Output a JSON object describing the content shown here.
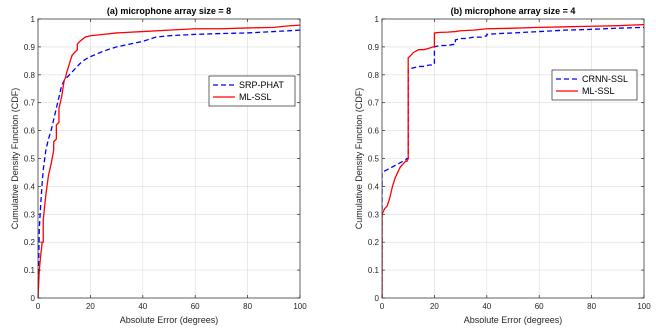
{
  "chart_data": [
    {
      "type": "line",
      "title": "(a) microphone array size = 8",
      "xlabel": "Absolute Error (degrees)",
      "ylabel": "Cumulative Density Function (CDF)",
      "xlim": [
        0,
        100
      ],
      "ylim": [
        0,
        1
      ],
      "xticks": [
        0,
        20,
        40,
        60,
        80,
        100
      ],
      "yticks": [
        0,
        0.1,
        0.2,
        0.3,
        0.4,
        0.5,
        0.6,
        0.7,
        0.8,
        0.9,
        1
      ],
      "xtick_labels": [
        "0",
        "20",
        "40",
        "60",
        "80",
        "100"
      ],
      "ytick_labels": [
        "0",
        "0.1",
        "0.2",
        "0.3",
        "0.4",
        "0.5",
        "0.6",
        "0.7",
        "0.8",
        "0.9",
        "1"
      ],
      "grid": true,
      "legend_position": "right",
      "series": [
        {
          "name": "SRP-PHAT",
          "color": "#0000ff",
          "style": "dashed",
          "x": [
            0,
            0.5,
            1,
            1.5,
            2,
            3,
            4,
            5,
            6,
            7,
            8,
            9,
            10,
            11,
            12,
            13,
            14,
            15,
            16,
            18,
            20,
            25,
            30,
            35,
            40,
            45,
            50,
            60,
            70,
            80,
            90,
            100
          ],
          "y": [
            0,
            0.25,
            0.33,
            0.4,
            0.46,
            0.53,
            0.57,
            0.6,
            0.64,
            0.68,
            0.72,
            0.76,
            0.78,
            0.79,
            0.8,
            0.81,
            0.82,
            0.83,
            0.84,
            0.855,
            0.865,
            0.885,
            0.9,
            0.91,
            0.92,
            0.935,
            0.94,
            0.945,
            0.948,
            0.95,
            0.955,
            0.96
          ]
        },
        {
          "name": "ML-SSL",
          "color": "#ff0000",
          "style": "solid",
          "x": [
            0,
            0.5,
            1,
            1.5,
            1.5,
            2,
            2,
            3,
            4,
            5,
            6,
            6,
            7,
            7,
            8,
            8,
            9,
            10,
            10.5,
            11,
            12,
            13,
            14,
            15,
            15,
            16,
            18,
            20,
            25,
            30,
            40,
            50,
            60,
            70,
            80,
            90,
            95,
            100
          ],
          "y": [
            0,
            0.1,
            0.15,
            0.19,
            0.2,
            0.2,
            0.28,
            0.37,
            0.44,
            0.48,
            0.53,
            0.56,
            0.57,
            0.62,
            0.63,
            0.68,
            0.72,
            0.78,
            0.79,
            0.81,
            0.84,
            0.87,
            0.88,
            0.89,
            0.91,
            0.92,
            0.935,
            0.94,
            0.945,
            0.95,
            0.955,
            0.96,
            0.965,
            0.965,
            0.968,
            0.97,
            0.975,
            0.978
          ]
        }
      ]
    },
    {
      "type": "line",
      "title": "(b) microphone array size = 4",
      "xlabel": "Absolute Error (degrees)",
      "ylabel": "Cumulative Density Function (CDF)",
      "xlim": [
        0,
        100
      ],
      "ylim": [
        0,
        1
      ],
      "xticks": [
        0,
        20,
        40,
        60,
        80,
        100
      ],
      "yticks": [
        0,
        0.1,
        0.2,
        0.3,
        0.4,
        0.5,
        0.6,
        0.7,
        0.8,
        0.9,
        1
      ],
      "xtick_labels": [
        "0",
        "20",
        "40",
        "60",
        "80",
        "100"
      ],
      "ytick_labels": [
        "0",
        "0.1",
        "0.2",
        "0.3",
        "0.4",
        "0.5",
        "0.6",
        "0.7",
        "0.8",
        "0.9",
        "1"
      ],
      "grid": true,
      "legend_position": "right",
      "series": [
        {
          "name": "CRNN-SSL",
          "color": "#0000ff",
          "style": "dashed",
          "x": [
            0,
            0,
            1,
            2,
            3,
            4,
            5,
            6,
            7,
            8,
            9,
            9.5,
            10,
            10,
            12,
            14,
            16,
            18,
            19.5,
            20,
            20,
            22,
            25,
            28,
            28,
            30,
            32,
            35,
            38,
            40,
            40,
            45,
            50,
            60,
            70,
            80,
            90,
            100
          ],
          "y": [
            0,
            0.45,
            0.455,
            0.46,
            0.465,
            0.47,
            0.475,
            0.48,
            0.485,
            0.49,
            0.495,
            0.5,
            0.5,
            0.82,
            0.825,
            0.83,
            0.83,
            0.835,
            0.835,
            0.84,
            0.9,
            0.905,
            0.905,
            0.91,
            0.925,
            0.93,
            0.93,
            0.935,
            0.935,
            0.94,
            0.945,
            0.948,
            0.95,
            0.955,
            0.96,
            0.963,
            0.967,
            0.97
          ]
        },
        {
          "name": "ML-SSL",
          "color": "#ff0000",
          "style": "solid",
          "x": [
            0,
            0,
            1,
            2,
            3,
            4,
            5,
            6,
            7,
            8,
            9,
            9.5,
            10,
            10,
            11,
            12,
            14,
            16,
            18,
            19.5,
            20,
            20,
            22,
            25,
            28,
            30,
            35,
            40,
            50,
            60,
            70,
            80,
            90,
            95,
            100
          ],
          "y": [
            0,
            0.3,
            0.32,
            0.33,
            0.36,
            0.4,
            0.43,
            0.45,
            0.47,
            0.48,
            0.49,
            0.49,
            0.5,
            0.86,
            0.87,
            0.88,
            0.89,
            0.89,
            0.895,
            0.9,
            0.9,
            0.95,
            0.952,
            0.953,
            0.955,
            0.958,
            0.96,
            0.965,
            0.967,
            0.97,
            0.972,
            0.974,
            0.976,
            0.978,
            0.98
          ]
        }
      ]
    }
  ]
}
